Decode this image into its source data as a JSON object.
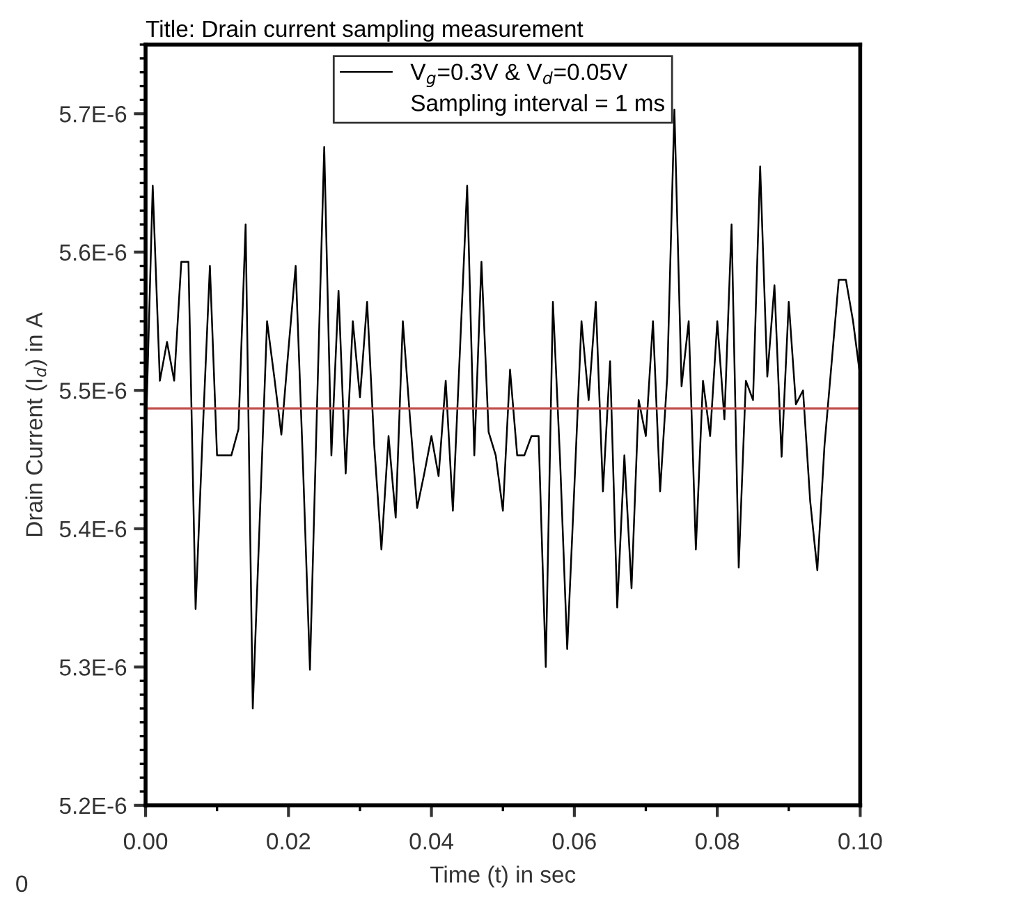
{
  "chart_data": {
    "type": "line",
    "title": "Title: Drain current sampling measurement",
    "xlabel": "Time (t) in sec",
    "ylabel": "Drain Current (I$_{d}$) in A",
    "x": [
      0,
      0.001,
      0.002,
      0.003,
      0.004,
      0.005,
      0.006,
      0.007,
      0.008,
      0.009,
      0.01,
      0.011,
      0.012,
      0.013,
      0.014,
      0.015,
      0.016,
      0.017,
      0.018,
      0.019,
      0.02,
      0.021,
      0.022,
      0.023,
      0.024,
      0.025,
      0.026,
      0.027,
      0.028,
      0.029,
      0.03,
      0.031,
      0.032,
      0.033,
      0.034,
      0.035,
      0.036,
      0.037,
      0.038,
      0.039,
      0.04,
      0.041,
      0.042,
      0.043,
      0.044,
      0.045,
      0.046,
      0.047,
      0.048,
      0.049,
      0.05,
      0.051,
      0.052,
      0.053,
      0.054,
      0.055,
      0.056,
      0.057,
      0.058,
      0.059,
      0.06,
      0.061,
      0.062,
      0.063,
      0.064,
      0.065,
      0.066,
      0.067,
      0.068,
      0.069,
      0.07,
      0.071,
      0.072,
      0.073,
      0.074,
      0.075,
      0.076,
      0.077,
      0.078,
      0.079,
      0.08,
      0.081,
      0.082,
      0.083,
      0.084,
      0.085,
      0.086,
      0.087,
      0.088,
      0.089,
      0.09,
      0.091,
      0.092,
      0.093,
      0.094,
      0.095,
      0.096,
      0.097,
      0.098,
      0.099,
      0.1
    ],
    "series": [
      {
        "name": "V$_{g}$=0.3V & V$_{d}$=0.05V",
        "color": "#000000",
        "values": [
          5.46e-06,
          5.648e-06,
          5.507e-06,
          5.535e-06,
          5.507e-06,
          5.593e-06,
          5.593e-06,
          5.342e-06,
          5.47e-06,
          5.59e-06,
          5.453e-06,
          5.453e-06,
          5.453e-06,
          5.472e-06,
          5.62e-06,
          5.27e-06,
          5.41e-06,
          5.55e-06,
          5.51e-06,
          5.468e-06,
          5.53e-06,
          5.59e-06,
          5.45e-06,
          5.298e-06,
          5.49e-06,
          5.676e-06,
          5.453e-06,
          5.572e-06,
          5.44e-06,
          5.55e-06,
          5.495e-06,
          5.564e-06,
          5.46e-06,
          5.385e-06,
          5.467e-06,
          5.408e-06,
          5.55e-06,
          5.48e-06,
          5.415e-06,
          5.44e-06,
          5.467e-06,
          5.438e-06,
          5.507e-06,
          5.413e-06,
          5.53e-06,
          5.648e-06,
          5.453e-06,
          5.593e-06,
          5.47e-06,
          5.453e-06,
          5.413e-06,
          5.515e-06,
          5.453e-06,
          5.453e-06,
          5.467e-06,
          5.467e-06,
          5.3e-06,
          5.564e-06,
          5.45e-06,
          5.313e-06,
          5.43e-06,
          5.55e-06,
          5.493e-06,
          5.564e-06,
          5.427e-06,
          5.521e-06,
          5.343e-06,
          5.453e-06,
          5.357e-06,
          5.493e-06,
          5.467e-06,
          5.55e-06,
          5.427e-06,
          5.51e-06,
          5.703e-06,
          5.503e-06,
          5.55e-06,
          5.385e-06,
          5.507e-06,
          5.467e-06,
          5.55e-06,
          5.479e-06,
          5.62e-06,
          5.372e-06,
          5.507e-06,
          5.493e-06,
          5.662e-06,
          5.51e-06,
          5.576e-06,
          5.452e-06,
          5.564e-06,
          5.49e-06,
          5.5e-06,
          5.42e-06,
          5.37e-06,
          5.46e-06,
          5.52e-06,
          5.58e-06,
          5.58e-06,
          5.55e-06,
          5.51e-06
        ]
      }
    ],
    "ref_lines": [
      {
        "axis": "y",
        "value": 5.487e-06,
        "label": null,
        "color": "#c0504d"
      }
    ],
    "xlim": [
      0,
      0.1
    ],
    "ylim": [
      5.2e-06,
      5.75e-06
    ],
    "xticks": [
      {
        "value": 0,
        "label": "0.00"
      },
      {
        "value": 0.02,
        "label": "0.02"
      },
      {
        "value": 0.04,
        "label": "0.04"
      },
      {
        "value": 0.06,
        "label": "0.06"
      },
      {
        "value": 0.08,
        "label": "0.08"
      },
      {
        "value": 0.1,
        "label": "0.10"
      }
    ],
    "yticks": [
      {
        "value": 5.2e-06,
        "label": "5.2E-6"
      },
      {
        "value": 5.3e-06,
        "label": "5.3E-6"
      },
      {
        "value": 5.4e-06,
        "label": "5.4E-6"
      },
      {
        "value": 5.5e-06,
        "label": "5.5E-6"
      },
      {
        "value": 5.6e-06,
        "label": "5.6E-6"
      },
      {
        "value": 5.7e-06,
        "label": "5.7E-6"
      }
    ],
    "legend": "top",
    "annotations": [
      "Sampling interval = 1 ms",
      "0"
    ],
    "grid": false,
    "marker": "none",
    "line_style": "solid"
  }
}
